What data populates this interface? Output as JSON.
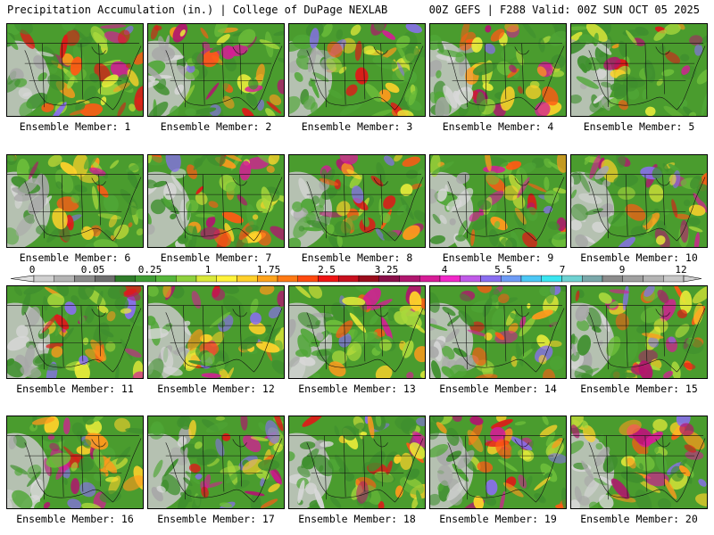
{
  "header": {
    "left": "Precipitation Accumulation (in.) | College of DuPage NEXLAB",
    "right": "00Z GEFS | F288 Valid: 00Z SUN OCT 05 2025"
  },
  "panels": [
    {
      "label": "Ensemble Member: 1"
    },
    {
      "label": "Ensemble Member: 2"
    },
    {
      "label": "Ensemble Member: 3"
    },
    {
      "label": "Ensemble Member: 4"
    },
    {
      "label": "Ensemble Member: 5"
    },
    {
      "label": "Ensemble Member: 6"
    },
    {
      "label": "Ensemble Member: 7"
    },
    {
      "label": "Ensemble Member: 8"
    },
    {
      "label": "Ensemble Member: 9"
    },
    {
      "label": "Ensemble Member: 10"
    },
    {
      "label": "Ensemble Member: 11"
    },
    {
      "label": "Ensemble Member: 12"
    },
    {
      "label": "Ensemble Member: 13"
    },
    {
      "label": "Ensemble Member: 14"
    },
    {
      "label": "Ensemble Member: 15"
    },
    {
      "label": "Ensemble Member: 16"
    },
    {
      "label": "Ensemble Member: 17"
    },
    {
      "label": "Ensemble Member: 18"
    },
    {
      "label": "Ensemble Member: 19"
    },
    {
      "label": "Ensemble Member: 20"
    }
  ],
  "colorbar": {
    "labels": [
      "0",
      "0.05",
      "0.25",
      "1",
      "1.75",
      "2.5",
      "3.25",
      "4",
      "5.5",
      "7",
      "9",
      "12"
    ],
    "colors": [
      "#d0d0d0",
      "#b4b4b4",
      "#8c8c8c",
      "#6e6e6e",
      "#2f7d2a",
      "#3f9c33",
      "#55b63a",
      "#8ed13d",
      "#d9e83a",
      "#fff23a",
      "#ffd02a",
      "#ffa41c",
      "#ff7a14",
      "#ff4a10",
      "#ee1414",
      "#c8101e",
      "#9a0c1c",
      "#8a0f4a",
      "#b0166e",
      "#d61c96",
      "#f028c8",
      "#c05ae8",
      "#8a6ef0",
      "#6e9cf5",
      "#4cc8f5",
      "#3ae6f0",
      "#6ed2d2",
      "#7aa8aa",
      "#8c8c8c",
      "#a0a0a0",
      "#b4b4b4",
      "#c8c8c8"
    ]
  }
}
